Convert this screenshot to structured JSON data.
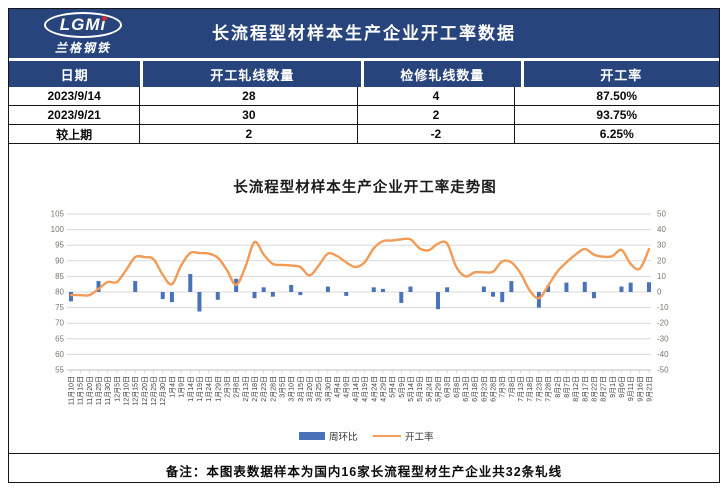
{
  "banner": {
    "logo_text": "LGMi",
    "logo_subtext": "兰格钢铁",
    "title": "长流程型材样本生产企业开工率数据"
  },
  "table": {
    "headers": [
      "日期",
      "开工轧线数量",
      "检修轧线数量",
      "开工率"
    ],
    "rows": [
      [
        "2023/9/14",
        "28",
        "4",
        "87.50%"
      ],
      [
        "2023/9/21",
        "30",
        "2",
        "93.75%"
      ],
      [
        "较上期",
        "2",
        "-2",
        "6.25%"
      ]
    ]
  },
  "chart_data": {
    "type": "bar+line",
    "title": "长流程型材样本生产企业开工率走势图",
    "categories": [
      "11月10日",
      "11月15日",
      "11月20日",
      "11月25日",
      "11月30日",
      "12月5日",
      "12月10日",
      "12月15日",
      "12月20日",
      "12月25日",
      "12月30日",
      "1月4日",
      "1月9日",
      "1月14日",
      "1月19日",
      "1月24日",
      "1月29日",
      "2月3日",
      "2月8日",
      "2月13日",
      "2月18日",
      "2月23日",
      "2月28日",
      "3月5日",
      "3月10日",
      "3月15日",
      "3月20日",
      "3月25日",
      "3月30日",
      "4月4日",
      "4月9日",
      "4月14日",
      "4月19日",
      "4月24日",
      "4月29日",
      "5月4日",
      "5月9日",
      "5月14日",
      "5月19日",
      "5月24日",
      "5月29日",
      "6月3日",
      "6月8日",
      "6月13日",
      "6月18日",
      "6月23日",
      "6月28日",
      "7月3日",
      "7月8日",
      "7月13日",
      "7月18日",
      "7月23日",
      "7月28日",
      "8月2日",
      "8月7日",
      "8月12日",
      "8月17日",
      "8月22日",
      "8月27日",
      "9月1日",
      "9月6日",
      "9月11日",
      "9月16日",
      "9月21日"
    ],
    "series": [
      {
        "name": "周环比",
        "type": "bar",
        "axis": "right",
        "color": "#4A72B8",
        "values": [
          -6,
          0,
          0,
          7,
          0,
          0,
          0,
          7,
          0,
          0,
          -4.5,
          -6.5,
          0,
          11.5,
          -12.5,
          0,
          -5,
          0,
          8.5,
          0,
          -4,
          3,
          -3,
          0,
          4.5,
          -2,
          0,
          0,
          3.5,
          0,
          -2.5,
          0,
          0,
          3,
          2,
          0,
          -7,
          3.5,
          0,
          0,
          -11,
          3,
          0,
          0,
          0,
          3.5,
          -3,
          -6.5,
          7,
          0,
          0,
          -10,
          4,
          0,
          6,
          0,
          6.5,
          -4,
          0,
          0,
          3.5,
          6,
          0,
          6.25
        ]
      },
      {
        "name": "开工率",
        "type": "line",
        "axis": "left",
        "color": "#F29B57",
        "values": [
          79,
          79,
          79,
          81,
          83.2,
          83.2,
          87,
          91.2,
          91.2,
          90.5,
          85.5,
          82.5,
          88.5,
          92.5,
          92.5,
          92.3,
          91,
          87,
          82.3,
          88,
          96,
          92,
          89,
          88.7,
          88.5,
          88,
          85.3,
          88.5,
          92.3,
          91.5,
          89.5,
          88,
          89.5,
          94,
          96.3,
          96.5,
          96.9,
          96.9,
          94,
          93.4,
          95.5,
          95.5,
          88,
          85,
          86.3,
          86.3,
          86.5,
          89.8,
          89.5,
          86,
          80.5,
          78,
          82,
          86.5,
          89.5,
          92,
          93.8,
          92,
          91.3,
          91.5,
          93.5,
          89,
          87.5,
          93.75
        ]
      }
    ],
    "left_axis": {
      "min": 55,
      "max": 105,
      "step": 5
    },
    "right_axis": {
      "min": -50,
      "max": 50,
      "step": 10
    },
    "x_labels_rotation": -90,
    "grid": true,
    "legend_position": "bottom"
  },
  "note": {
    "label": "备注：本图表数据样本为国内16家长流程型材生产企业共32条轧线"
  },
  "colors": {
    "banner_navy": "#28447C",
    "bar_blue": "#4A72B8",
    "line_orange": "#F29B57",
    "gridline": "#D9D9D9",
    "axis_tick_text": "#76766C",
    "x_label_text": "#3F3F3F"
  }
}
